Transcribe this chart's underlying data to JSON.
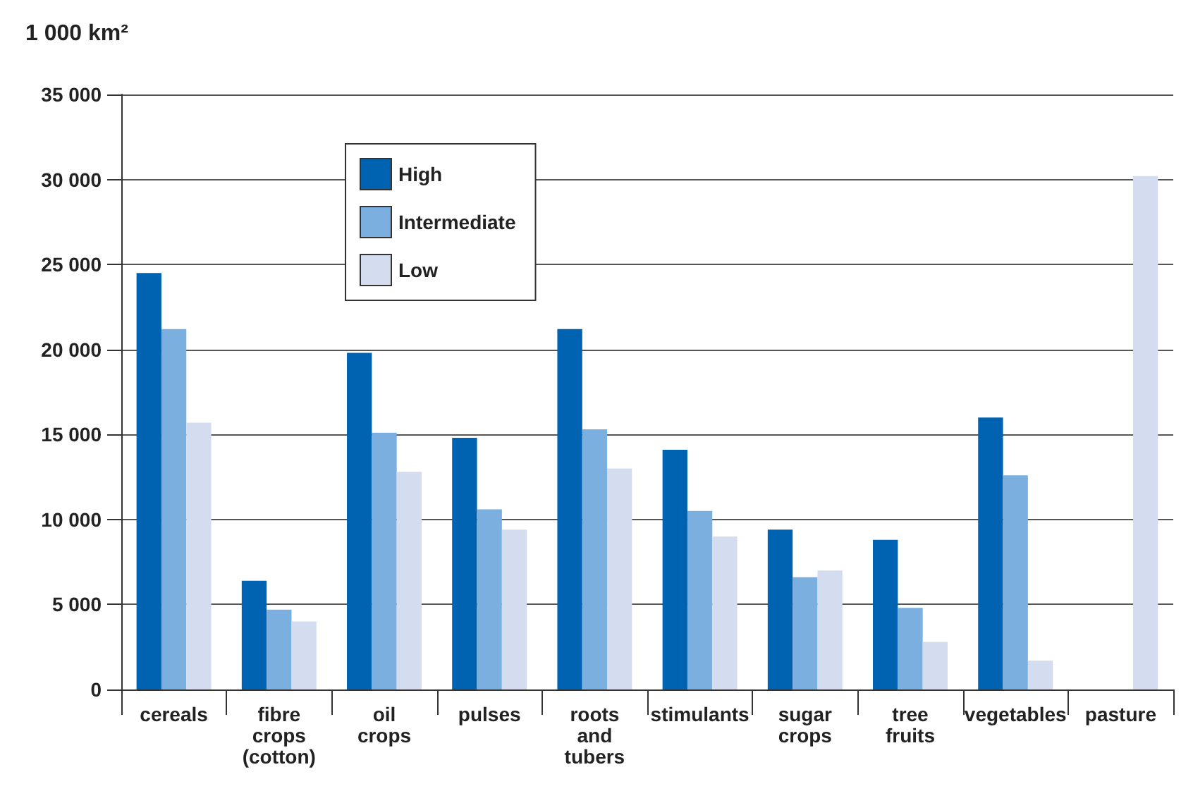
{
  "chart_data": {
    "type": "bar",
    "ylabel": "1 000 km²",
    "categories": [
      "cereals",
      "fibre\ncrops\n(cotton)",
      "oil\ncrops",
      "pulses",
      "roots\nand\ntubers",
      "stimulants",
      "sugar\ncrops",
      "tree\nfruits",
      "vegetables",
      "pasture"
    ],
    "series": [
      {
        "name": "High",
        "color": "#0063b1",
        "values": [
          24500,
          6400,
          19800,
          14800,
          21200,
          14100,
          9400,
          8800,
          16000,
          null
        ]
      },
      {
        "name": "Intermediate",
        "color": "#7aafdf",
        "values": [
          21200,
          4700,
          15100,
          10600,
          15300,
          10500,
          6600,
          4800,
          12600,
          null
        ]
      },
      {
        "name": "Low",
        "color": "#d3ddef",
        "values": [
          15700,
          4000,
          12800,
          9400,
          13000,
          9000,
          7000,
          2800,
          1700,
          30200
        ]
      }
    ],
    "ylim": [
      0,
      35000
    ],
    "yticks": [
      0,
      {
        "value": 5000,
        "label": "5 000"
      },
      {
        "value": 10000,
        "label": "10 000"
      },
      {
        "value": 15000,
        "label": "15 000"
      },
      {
        "value": 20000,
        "label": "20 000"
      },
      {
        "value": 25000,
        "label": "25 000"
      },
      {
        "value": 30000,
        "label": "30 000"
      },
      {
        "value": 35000,
        "label": "35 000"
      }
    ],
    "grid": "y",
    "legend": "top left"
  }
}
